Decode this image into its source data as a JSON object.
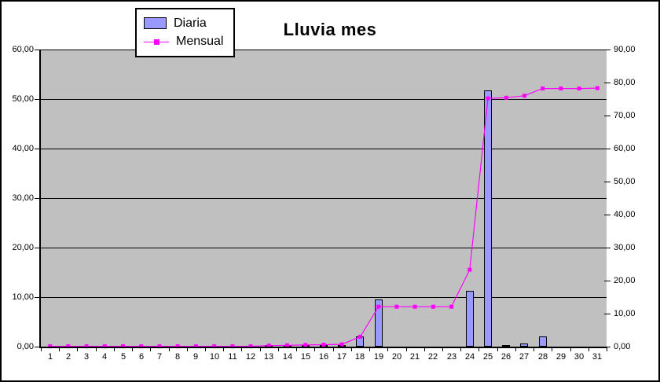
{
  "colors": {
    "chart_bg": "#ffffff",
    "outer_border": "#000000",
    "plot_bg": "#c0c0c0",
    "grid": "#000000",
    "axis": "#000000",
    "bar_fill": "#9999ff",
    "bar_border": "#000000",
    "line": "#ff00ff",
    "text": "#000000"
  },
  "legend": {
    "items": [
      {
        "label": "Diaria",
        "swatch": "bar-swatch"
      },
      {
        "label": "Mensual",
        "swatch": "line-marker-swatch"
      }
    ]
  },
  "chart_data": {
    "type": "bar+line combo",
    "title": "Lluvia mes",
    "legend_position": "top-left",
    "grid": {
      "horizontal_major": true,
      "vertical": false
    },
    "categories": [
      1,
      2,
      3,
      4,
      5,
      6,
      7,
      8,
      9,
      10,
      11,
      12,
      13,
      14,
      15,
      16,
      17,
      18,
      19,
      20,
      21,
      22,
      23,
      24,
      25,
      26,
      27,
      28,
      29,
      30,
      31
    ],
    "x_axis": {
      "tick_labels": [
        "1",
        "2",
        "3",
        "4",
        "5",
        "6",
        "7",
        "8",
        "9",
        "10",
        "11",
        "12",
        "13",
        "14",
        "15",
        "16",
        "17",
        "18",
        "19",
        "20",
        "21",
        "22",
        "23",
        "24",
        "25",
        "26",
        "27",
        "28",
        "29",
        "30",
        "31"
      ]
    },
    "left_axis": {
      "min": 0,
      "max": 60,
      "step": 10,
      "tick_labels": [
        "60,00",
        "50,00",
        "40,00",
        "30,00",
        "20,00",
        "10,00",
        "0,00"
      ]
    },
    "right_axis": {
      "min": 0,
      "max": 90,
      "step": 10,
      "tick_labels": [
        "90,00",
        "80,00",
        "70,00",
        "60,00",
        "50,00",
        "40,00",
        "30,00",
        "20,00",
        "10,00",
        "0,00"
      ]
    },
    "series": [
      {
        "name": "Diaria",
        "type": "bar",
        "axis": "left",
        "color": "#9999ff",
        "values": [
          0,
          0,
          0,
          0,
          0,
          0,
          0,
          0,
          0,
          0,
          0,
          0,
          0.1,
          0.1,
          0.1,
          0.1,
          0.2,
          2.0,
          9.5,
          0,
          0,
          0,
          0,
          11.2,
          51.8,
          0.2,
          0.7,
          2.1,
          0,
          0,
          0
        ]
      },
      {
        "name": "Mensual",
        "type": "line",
        "axis": "right",
        "color": "#ff00ff",
        "values": [
          0.1,
          0.1,
          0.1,
          0.1,
          0.1,
          0.1,
          0.1,
          0.1,
          0.1,
          0.1,
          0.1,
          0.1,
          0.3,
          0.4,
          0.5,
          0.6,
          0.7,
          3.0,
          12.1,
          12.1,
          12.1,
          12.1,
          12.1,
          23.3,
          75.2,
          75.4,
          76.0,
          78.2,
          78.2,
          78.2,
          78.3
        ]
      }
    ]
  }
}
